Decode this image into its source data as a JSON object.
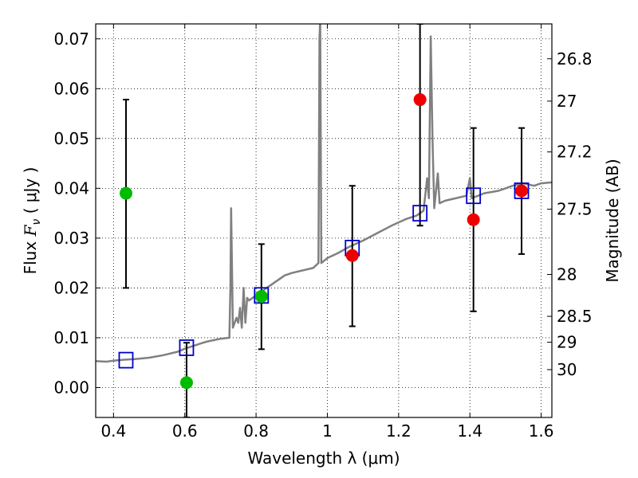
{
  "chart_data": {
    "type": "scatter",
    "xlabel": "Wavelength  λ (μm)",
    "ylabel_prefix": "Flux ",
    "ylabel_symbol": "F",
    "ylabel_subscript": "ν",
    "ylabel_suffix": " ( μJy )",
    "right_ylabel": "Magnitude (AB)",
    "xlim": [
      0.35,
      1.63
    ],
    "ylim": [
      -0.006,
      0.073
    ],
    "xticks": [
      0.4,
      0.6,
      0.8,
      1.0,
      1.2,
      1.4,
      1.6
    ],
    "xtick_labels": [
      "0.4",
      "0.6",
      "0.8",
      "1",
      "1.2",
      "1.4",
      "1.6"
    ],
    "yticks": [
      0.0,
      0.01,
      0.02,
      0.03,
      0.04,
      0.05,
      0.06,
      0.07
    ],
    "ytick_labels": [
      "0.00",
      "0.01",
      "0.02",
      "0.03",
      "0.04",
      "0.05",
      "0.06",
      "0.07"
    ],
    "right_ticks": [
      {
        "label": "26.8",
        "flux": 0.066
      },
      {
        "label": "27",
        "flux": 0.0575
      },
      {
        "label": "27.2",
        "flux": 0.0473
      },
      {
        "label": "27.5",
        "flux": 0.0358
      },
      {
        "label": "28",
        "flux": 0.0227
      },
      {
        "label": "28.5",
        "flux": 0.0143
      },
      {
        "label": "29",
        "flux": 0.0091
      },
      {
        "label": "30",
        "flux": 0.0036
      }
    ],
    "grid": true,
    "series": [
      {
        "type": "line",
        "color": "#808080",
        "points": [
          [
            0.35,
            0.0053
          ],
          [
            0.38,
            0.0052
          ],
          [
            0.4,
            0.0054
          ],
          [
            0.43,
            0.0056
          ],
          [
            0.46,
            0.0057
          ],
          [
            0.5,
            0.006
          ],
          [
            0.54,
            0.0065
          ],
          [
            0.58,
            0.0072
          ],
          [
            0.6,
            0.0078
          ],
          [
            0.63,
            0.0085
          ],
          [
            0.66,
            0.0092
          ],
          [
            0.7,
            0.0098
          ],
          [
            0.725,
            0.01
          ],
          [
            0.728,
            0.02
          ],
          [
            0.73,
            0.036
          ],
          [
            0.735,
            0.012
          ],
          [
            0.745,
            0.014
          ],
          [
            0.75,
            0.013
          ],
          [
            0.755,
            0.016
          ],
          [
            0.76,
            0.012
          ],
          [
            0.765,
            0.02
          ],
          [
            0.77,
            0.013
          ],
          [
            0.775,
            0.018
          ],
          [
            0.78,
            0.0175
          ],
          [
            0.8,
            0.0185
          ],
          [
            0.82,
            0.0195
          ],
          [
            0.85,
            0.021
          ],
          [
            0.88,
            0.0225
          ],
          [
            0.9,
            0.023
          ],
          [
            0.93,
            0.0235
          ],
          [
            0.96,
            0.024
          ],
          [
            0.975,
            0.025
          ],
          [
            0.978,
            0.07
          ],
          [
            0.98,
            0.074
          ],
          [
            0.983,
            0.025
          ],
          [
            1.0,
            0.026
          ],
          [
            1.03,
            0.027
          ],
          [
            1.06,
            0.0282
          ],
          [
            1.1,
            0.0295
          ],
          [
            1.14,
            0.031
          ],
          [
            1.18,
            0.0325
          ],
          [
            1.22,
            0.0338
          ],
          [
            1.25,
            0.0345
          ],
          [
            1.27,
            0.0355
          ],
          [
            1.28,
            0.042
          ],
          [
            1.285,
            0.038
          ],
          [
            1.29,
            0.0705
          ],
          [
            1.295,
            0.05
          ],
          [
            1.3,
            0.036
          ],
          [
            1.31,
            0.043
          ],
          [
            1.315,
            0.037
          ],
          [
            1.33,
            0.0375
          ],
          [
            1.36,
            0.038
          ],
          [
            1.39,
            0.0385
          ],
          [
            1.4,
            0.042
          ],
          [
            1.405,
            0.038
          ],
          [
            1.44,
            0.039
          ],
          [
            1.48,
            0.0395
          ],
          [
            1.5,
            0.04
          ],
          [
            1.52,
            0.0405
          ],
          [
            1.55,
            0.041
          ],
          [
            1.58,
            0.0405
          ],
          [
            1.6,
            0.041
          ],
          [
            1.63,
            0.0412
          ]
        ]
      },
      {
        "type": "scatter",
        "marker": "square-open",
        "color": "#0000cc",
        "x": [
          0.435,
          0.605,
          0.815,
          1.07,
          1.26,
          1.41,
          1.545
        ],
        "y": [
          0.0055,
          0.008,
          0.0185,
          0.028,
          0.035,
          0.0385,
          0.0395
        ]
      },
      {
        "type": "scatter",
        "marker": "circle",
        "color": "#00bb00",
        "x": [
          0.435,
          0.605,
          0.815
        ],
        "y": [
          0.039,
          0.001,
          0.0183
        ],
        "yerr_low": [
          0.02,
          -0.006,
          0.0077
        ],
        "yerr_high": [
          0.0578,
          0.009,
          0.0288
        ]
      },
      {
        "type": "scatter",
        "marker": "circle",
        "color": "#ee0000",
        "x": [
          1.07,
          1.26,
          1.41,
          1.545
        ],
        "y": [
          0.0265,
          0.0578,
          0.0337,
          0.0395
        ],
        "yerr_low": [
          0.0123,
          0.0325,
          0.0153,
          0.0268
        ],
        "yerr_high": [
          0.0405,
          0.073,
          0.0521,
          0.0521
        ]
      }
    ]
  }
}
